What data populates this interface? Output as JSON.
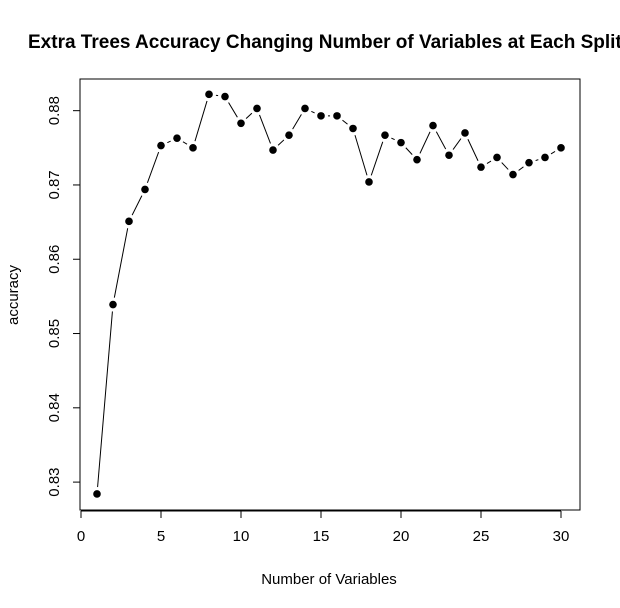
{
  "chart_data": {
    "type": "line",
    "title": "Extra Trees Accuracy Changing Number of Variables at Each Split",
    "xlabel": "Number of Variables",
    "ylabel": "accuracy",
    "xlim": [
      0,
      30
    ],
    "ylim": [
      0.8283,
      0.8823
    ],
    "x_ticks": [
      0,
      5,
      10,
      15,
      20,
      25,
      30
    ],
    "y_ticks": [
      0.83,
      0.84,
      0.85,
      0.86,
      0.87,
      0.88
    ],
    "x_tick_labels": [
      "0",
      "5",
      "10",
      "15",
      "20",
      "25",
      "30"
    ],
    "y_tick_labels": [
      "0.83",
      "0.84",
      "0.85",
      "0.86",
      "0.87",
      "0.88"
    ],
    "grid": false,
    "point_style": "filled-circle",
    "line_color": "#000000",
    "point_color": "#000000",
    "series": [
      {
        "x": [
          1,
          2,
          3,
          4,
          5,
          6,
          7,
          8,
          9,
          10,
          11,
          12,
          13,
          14,
          15,
          16,
          17,
          18,
          19,
          20,
          21,
          22,
          23,
          24,
          25,
          26,
          27,
          28,
          29,
          30
        ],
        "values": [
          0.8284,
          0.8539,
          0.8651,
          0.8694,
          0.8753,
          0.8763,
          0.875,
          0.8822,
          0.8819,
          0.8783,
          0.8803,
          0.8747,
          0.8767,
          0.8803,
          0.8793,
          0.8793,
          0.8776,
          0.8704,
          0.8767,
          0.8757,
          0.8734,
          0.878,
          0.874,
          0.877,
          0.8724,
          0.8737,
          0.8714,
          0.873,
          0.8737,
          0.875
        ]
      }
    ]
  }
}
